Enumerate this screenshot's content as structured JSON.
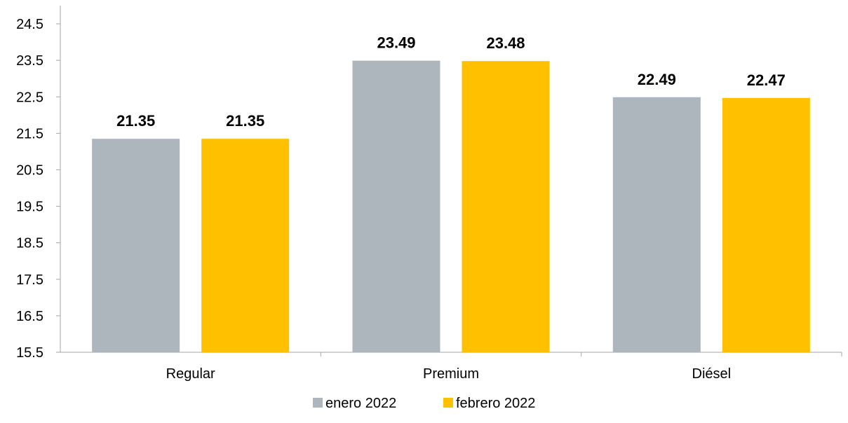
{
  "chart_data": {
    "type": "bar",
    "title": "",
    "xlabel": "",
    "ylabel": "",
    "categories": [
      "Regular",
      "Premium",
      "Diésel"
    ],
    "series": [
      {
        "name": "enero 2022",
        "color": "#ADB5BD",
        "values": [
          21.35,
          23.49,
          22.49
        ],
        "labels": [
          "21.35",
          "23.49",
          "22.49"
        ]
      },
      {
        "name": "febrero 2022",
        "color": "#FFC000",
        "values": [
          21.35,
          23.48,
          22.47
        ],
        "labels": [
          "21.35",
          "23.48",
          "22.47"
        ]
      }
    ],
    "ylim": [
      15.5,
      25
    ],
    "yticks": [
      "15.5",
      "16.5",
      "17.5",
      "18.5",
      "19.5",
      "20.5",
      "21.5",
      "22.5",
      "23.5",
      "24.5"
    ],
    "grid": false,
    "legend_position": "bottom-center"
  }
}
